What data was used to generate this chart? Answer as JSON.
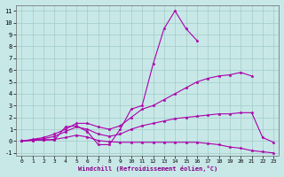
{
  "xlabel": "Windchill (Refroidissement éolien,°C)",
  "background_color": "#c8e8e8",
  "grid_color": "#a0ccc8",
  "line_color": "#aa00aa",
  "xlim": [
    -0.5,
    23.5
  ],
  "ylim": [
    -1.2,
    11.5
  ],
  "xticks": [
    0,
    1,
    2,
    3,
    4,
    5,
    6,
    7,
    8,
    9,
    10,
    11,
    12,
    13,
    14,
    15,
    16,
    17,
    18,
    19,
    20,
    21,
    22,
    23
  ],
  "yticks": [
    -1,
    0,
    1,
    2,
    3,
    4,
    5,
    6,
    7,
    8,
    9,
    10,
    11
  ],
  "series": [
    {
      "x": [
        0,
        1,
        2,
        3,
        4,
        5,
        6,
        7,
        8,
        9,
        10,
        11,
        12,
        13,
        14,
        15,
        16
      ],
      "y": [
        0.0,
        0.1,
        0.1,
        0.1,
        1.2,
        1.3,
        0.8,
        -0.3,
        -0.3,
        1.0,
        2.7,
        3.0,
        6.5,
        9.5,
        11.0,
        9.5,
        8.5
      ]
    },
    {
      "x": [
        0,
        1,
        2,
        3,
        4,
        5,
        6,
        7,
        8,
        9,
        10,
        11,
        12,
        13,
        14,
        15,
        16,
        17,
        18,
        19,
        20,
        21
      ],
      "y": [
        0.0,
        0.15,
        0.3,
        0.6,
        1.0,
        1.5,
        1.5,
        1.2,
        1.0,
        1.3,
        2.0,
        2.7,
        3.0,
        3.5,
        4.0,
        4.5,
        5.0,
        5.3,
        5.5,
        5.6,
        5.8,
        5.5
      ]
    },
    {
      "x": [
        0,
        1,
        2,
        3,
        4,
        5,
        6,
        7,
        8,
        9,
        10,
        11,
        12,
        13,
        14,
        15,
        16,
        17,
        18,
        19,
        20,
        21,
        22,
        23
      ],
      "y": [
        0.0,
        0.05,
        0.1,
        0.15,
        0.3,
        0.5,
        0.35,
        0.05,
        -0.05,
        -0.1,
        -0.1,
        -0.1,
        -0.1,
        -0.1,
        -0.1,
        -0.1,
        -0.1,
        -0.2,
        -0.3,
        -0.5,
        -0.6,
        -0.8,
        -0.9,
        -1.0
      ]
    },
    {
      "x": [
        0,
        1,
        2,
        3,
        4,
        5,
        6,
        7,
        8,
        9,
        10,
        11,
        12,
        13,
        14,
        15,
        16,
        17,
        18,
        19,
        20,
        21,
        22,
        23
      ],
      "y": [
        0.0,
        0.1,
        0.2,
        0.4,
        0.8,
        1.2,
        1.0,
        0.6,
        0.4,
        0.6,
        1.0,
        1.3,
        1.5,
        1.7,
        1.9,
        2.0,
        2.1,
        2.2,
        2.3,
        2.3,
        2.4,
        2.4,
        0.3,
        -0.1
      ]
    }
  ]
}
